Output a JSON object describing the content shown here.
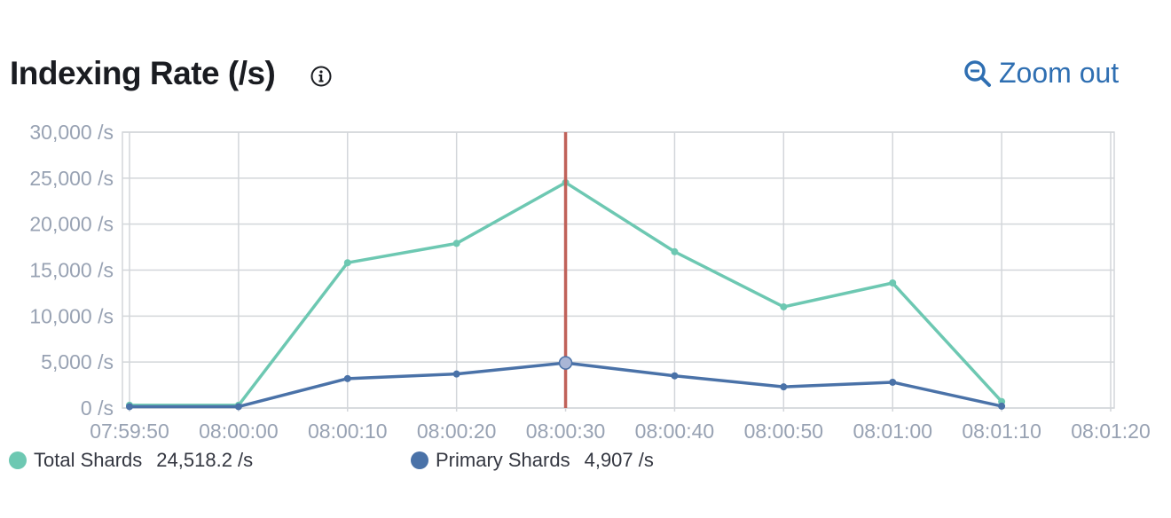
{
  "header": {
    "title": "Indexing Rate (/s)",
    "zoom_label": "Zoom out"
  },
  "legend": [
    {
      "name": "Total Shards",
      "value": "24,518.2 /s",
      "color": "#6dc8b2"
    },
    {
      "name": "Primary Shards",
      "value": "4,907 /s",
      "color": "#4a72a8"
    }
  ],
  "chart_data": {
    "type": "line",
    "x": [
      "07:59:50",
      "08:00:00",
      "08:00:10",
      "08:00:20",
      "08:00:30",
      "08:00:40",
      "08:00:50",
      "08:01:00",
      "08:01:10"
    ],
    "x_ticks": [
      "07:59:50",
      "08:00:00",
      "08:00:10",
      "08:00:20",
      "08:00:30",
      "08:00:40",
      "08:00:50",
      "08:01:00",
      "08:01:10",
      "08:01:20"
    ],
    "y_ticks": [
      "0 /s",
      "5,000 /s",
      "10,000 /s",
      "15,000 /s",
      "20,000 /s",
      "25,000 /s",
      "30,000 /s"
    ],
    "ylim": [
      0,
      30000
    ],
    "xlim": [
      "07:59:50",
      "08:01:20"
    ],
    "grid": true,
    "cursor_x": "08:00:30",
    "cursor_color": "#c0625a",
    "series": [
      {
        "name": "Total Shards",
        "color": "#6dc8b2",
        "values": [
          300,
          300,
          15800,
          17900,
          24518.2,
          17000,
          11000,
          13600,
          700
        ]
      },
      {
        "name": "Primary Shards",
        "color": "#4a72a8",
        "values": [
          150,
          150,
          3200,
          3700,
          4907,
          3500,
          2300,
          2800,
          200
        ]
      }
    ]
  }
}
